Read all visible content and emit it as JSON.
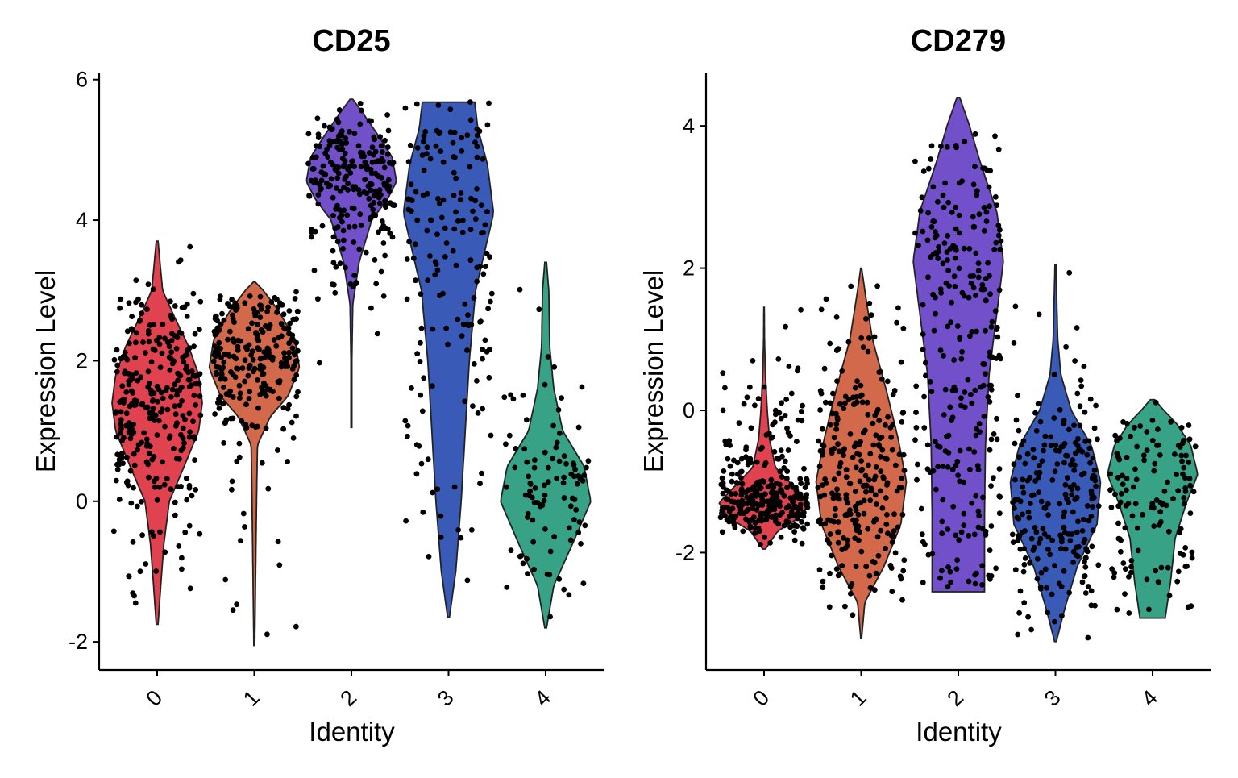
{
  "chart_data": [
    {
      "type": "violin",
      "title": "CD25",
      "xlabel": "Identity",
      "ylabel": "Expression Level",
      "ylim": [
        -2.4,
        6.1
      ],
      "yticks": [
        -2,
        0,
        2,
        4,
        6
      ],
      "categories": [
        "0",
        "1",
        "2",
        "3",
        "4"
      ],
      "colors": [
        "#E0434F",
        "#D2694A",
        "#7150C9",
        "#3A5AB7",
        "#38A287"
      ],
      "series": [
        {
          "range": [
            -1.75,
            3.7
          ],
          "n": 300,
          "profile": [
            [
              -1.75,
              0.02
            ],
            [
              -1.2,
              0.08
            ],
            [
              -0.6,
              0.15
            ],
            [
              0.0,
              0.27
            ],
            [
              0.5,
              0.6
            ],
            [
              1.0,
              0.92
            ],
            [
              1.4,
              1.0
            ],
            [
              1.8,
              0.92
            ],
            [
              2.2,
              0.7
            ],
            [
              2.6,
              0.4
            ],
            [
              3.0,
              0.12
            ],
            [
              3.7,
              0.02
            ]
          ]
        },
        {
          "range": [
            -2.05,
            3.12
          ],
          "n": 260,
          "profile": [
            [
              -2.05,
              0.01
            ],
            [
              -1.0,
              0.03
            ],
            [
              0.0,
              0.05
            ],
            [
              0.8,
              0.07
            ],
            [
              1.2,
              0.35
            ],
            [
              1.5,
              0.75
            ],
            [
              1.9,
              1.0
            ],
            [
              2.3,
              0.9
            ],
            [
              2.7,
              0.55
            ],
            [
              3.0,
              0.2
            ],
            [
              3.12,
              0.02
            ]
          ]
        },
        {
          "range": [
            1.05,
            5.72
          ],
          "n": 240,
          "profile": [
            [
              1.05,
              0.01
            ],
            [
              2.0,
              0.01
            ],
            [
              2.8,
              0.03
            ],
            [
              3.4,
              0.17
            ],
            [
              4.0,
              0.45
            ],
            [
              4.3,
              0.8
            ],
            [
              4.55,
              1.0
            ],
            [
              4.9,
              0.9
            ],
            [
              5.2,
              0.6
            ],
            [
              5.5,
              0.28
            ],
            [
              5.72,
              0.03
            ]
          ]
        },
        {
          "range": [
            -1.65,
            5.68
          ],
          "n": 170,
          "profile": [
            [
              -1.65,
              0.02
            ],
            [
              -1.0,
              0.16
            ],
            [
              0.0,
              0.28
            ],
            [
              1.0,
              0.37
            ],
            [
              2.0,
              0.46
            ],
            [
              3.0,
              0.6
            ],
            [
              4.1,
              1.0
            ],
            [
              4.8,
              0.86
            ],
            [
              5.3,
              0.65
            ],
            [
              5.68,
              0.58
            ]
          ]
        },
        {
          "range": [
            -1.8,
            3.4
          ],
          "n": 100,
          "profile": [
            [
              -1.8,
              0.02
            ],
            [
              -1.2,
              0.18
            ],
            [
              -0.6,
              0.6
            ],
            [
              0.0,
              1.0
            ],
            [
              0.5,
              0.85
            ],
            [
              1.0,
              0.38
            ],
            [
              1.6,
              0.18
            ],
            [
              2.2,
              0.09
            ],
            [
              3.0,
              0.07
            ],
            [
              3.4,
              0.02
            ]
          ]
        }
      ]
    },
    {
      "type": "violin",
      "title": "CD279",
      "xlabel": "Identity",
      "ylabel": "Expression Level",
      "ylim": [
        -3.65,
        4.75
      ],
      "yticks": [
        -2,
        0,
        2,
        4
      ],
      "categories": [
        "0",
        "1",
        "2",
        "3",
        "4"
      ],
      "colors": [
        "#E0434F",
        "#D2694A",
        "#7150C9",
        "#3A5AB7",
        "#38A287"
      ],
      "series": [
        {
          "range": [
            -1.95,
            1.45
          ],
          "n": 310,
          "profile": [
            [
              -1.95,
              0.03
            ],
            [
              -1.7,
              0.3
            ],
            [
              -1.5,
              0.8
            ],
            [
              -1.3,
              1.0
            ],
            [
              -1.1,
              0.7
            ],
            [
              -0.8,
              0.25
            ],
            [
              -0.4,
              0.12
            ],
            [
              0.0,
              0.07
            ],
            [
              0.5,
              0.03
            ],
            [
              1.0,
              0.01
            ],
            [
              1.45,
              0.005
            ]
          ]
        },
        {
          "range": [
            -3.2,
            2.0
          ],
          "n": 270,
          "profile": [
            [
              -3.2,
              0.01
            ],
            [
              -2.7,
              0.08
            ],
            [
              -2.2,
              0.5
            ],
            [
              -1.6,
              0.88
            ],
            [
              -1.0,
              1.0
            ],
            [
              -0.4,
              0.82
            ],
            [
              0.3,
              0.55
            ],
            [
              1.0,
              0.25
            ],
            [
              1.6,
              0.1
            ],
            [
              2.0,
              0.01
            ]
          ]
        },
        {
          "range": [
            -2.55,
            4.4
          ],
          "n": 280,
          "profile": [
            [
              -2.55,
              0.58
            ],
            [
              -1.5,
              0.58
            ],
            [
              -0.5,
              0.6
            ],
            [
              0.5,
              0.68
            ],
            [
              1.5,
              0.88
            ],
            [
              2.1,
              1.0
            ],
            [
              2.8,
              0.85
            ],
            [
              3.5,
              0.48
            ],
            [
              4.0,
              0.25
            ],
            [
              4.4,
              0.03
            ]
          ]
        },
        {
          "range": [
            -3.25,
            2.05
          ],
          "n": 230,
          "profile": [
            [
              -3.25,
              0.02
            ],
            [
              -2.8,
              0.2
            ],
            [
              -2.2,
              0.48
            ],
            [
              -1.6,
              0.92
            ],
            [
              -1.0,
              1.0
            ],
            [
              -0.5,
              0.8
            ],
            [
              0.0,
              0.35
            ],
            [
              0.5,
              0.12
            ],
            [
              1.0,
              0.05
            ],
            [
              2.05,
              0.01
            ]
          ]
        },
        {
          "range": [
            -2.92,
            0.15
          ],
          "n": 130,
          "profile": [
            [
              -2.92,
              0.28
            ],
            [
              -2.4,
              0.4
            ],
            [
              -1.8,
              0.5
            ],
            [
              -1.3,
              0.75
            ],
            [
              -0.9,
              1.0
            ],
            [
              -0.5,
              0.85
            ],
            [
              -0.2,
              0.55
            ],
            [
              0.0,
              0.25
            ],
            [
              0.15,
              0.05
            ]
          ]
        }
      ]
    }
  ]
}
